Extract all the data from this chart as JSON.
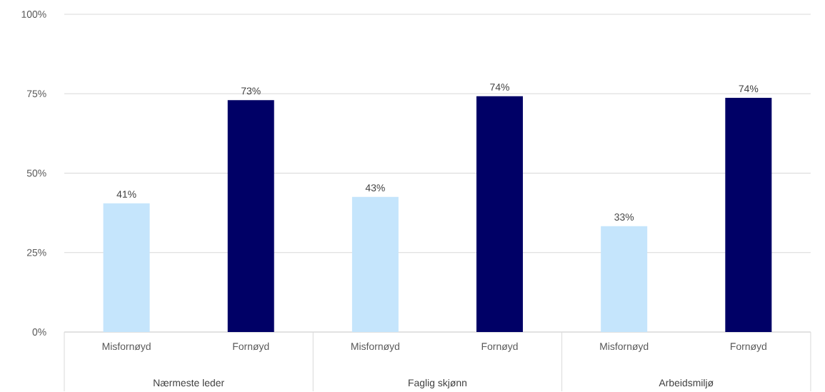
{
  "chart_data": {
    "type": "bar",
    "categories": [
      "Misfornøyd",
      "Fornøyd",
      "Misfornøyd",
      "Fornøyd",
      "Misfornøyd",
      "Fornøyd"
    ],
    "values": [
      40.5,
      73,
      42.5,
      74.2,
      33.3,
      73.7
    ],
    "value_labels": [
      "41%",
      "73%",
      "43%",
      "74%",
      "33%",
      "74%"
    ],
    "colors": [
      "#c5e5fc",
      "#000066",
      "#c5e5fc",
      "#000066",
      "#c5e5fc",
      "#000066"
    ],
    "ylim": [
      0,
      100
    ],
    "yticks": [
      {
        "value": 0,
        "label": "0%"
      },
      {
        "value": 25,
        "label": "25%"
      },
      {
        "value": 50,
        "label": "50%"
      },
      {
        "value": 75,
        "label": "75%"
      },
      {
        "value": 100,
        "label": "100%"
      }
    ],
    "grid": "y",
    "annotations": [
      "Nærmeste leder",
      "Faglig skjønn",
      "Arbeidsmiljø"
    ]
  }
}
